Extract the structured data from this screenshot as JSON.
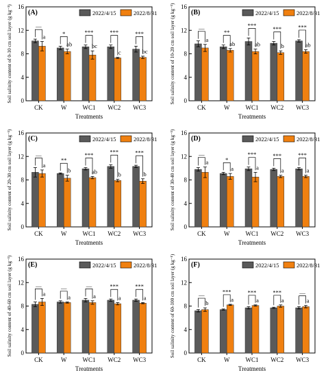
{
  "colors": {
    "dark": "#5a5a5a",
    "orange": "#f08010"
  },
  "legend_labels": [
    "2022/4/15",
    "2022/8/31"
  ],
  "xlabel": "Treatments",
  "chart_data": [
    {
      "panel": "(A)",
      "type": "bar",
      "categories": [
        "CK",
        "W",
        "WC1",
        "WC2",
        "WC3"
      ],
      "ylabel": "Soil salinity content of 0-10 cm soil layer (g kg⁻¹)",
      "ylim": [
        0,
        16
      ],
      "yticks": [
        0,
        4,
        8,
        12,
        16
      ],
      "series": [
        {
          "name": "2022/4/15",
          "values": [
            10.2,
            9.0,
            9.2,
            9.2,
            8.8
          ],
          "errors": [
            0.3,
            0.3,
            0.3,
            0.3,
            0.5
          ]
        },
        {
          "name": "2022/8/31",
          "values": [
            9.3,
            8.4,
            7.8,
            7.3,
            7.4
          ],
          "errors": [
            0.8,
            0.4,
            0.7,
            0.1,
            0.2
          ]
        }
      ],
      "letters": [
        "a",
        "ab",
        "bc",
        "c",
        "bc"
      ],
      "significance": [
        "—",
        "*",
        "***",
        "***",
        "***"
      ]
    },
    {
      "panel": "(B)",
      "type": "bar",
      "categories": [
        "CK",
        "W",
        "WC1",
        "WC2",
        "WC3"
      ],
      "ylabel": "Soil salinity content of 10-20 cm soil layer (g kg⁻¹)",
      "ylim": [
        0,
        16
      ],
      "yticks": [
        0,
        4,
        8,
        12,
        16
      ],
      "series": [
        {
          "name": "2022/4/15",
          "values": [
            9.7,
            9.2,
            10.1,
            9.8,
            10.2
          ],
          "errors": [
            0.5,
            0.3,
            0.6,
            0.3,
            0.2
          ]
        },
        {
          "name": "2022/8/31",
          "values": [
            9.0,
            8.6,
            8.4,
            8.2,
            8.4
          ],
          "errors": [
            0.6,
            0.3,
            0.4,
            0.3,
            0.3
          ]
        }
      ],
      "letters": [
        "a",
        "ab",
        "ab",
        "b",
        "ab"
      ],
      "significance": [
        "—",
        "**",
        "***",
        "***",
        "***"
      ]
    },
    {
      "panel": "(C)",
      "type": "bar",
      "categories": [
        "CK",
        "W",
        "WC1",
        "WC2",
        "WC3"
      ],
      "ylabel": "Soil salinity content of 20-30 cm soil layer (g kg⁻¹)",
      "ylim": [
        0,
        16
      ],
      "yticks": [
        0,
        4,
        8,
        12,
        16
      ],
      "series": [
        {
          "name": "2022/4/15",
          "values": [
            9.3,
            9.1,
            9.9,
            10.3,
            10.3
          ],
          "errors": [
            0.8,
            0.1,
            0.2,
            0.3,
            0.2
          ]
        },
        {
          "name": "2022/8/31",
          "values": [
            9.1,
            8.3,
            8.4,
            7.9,
            7.8
          ],
          "errors": [
            0.6,
            0.5,
            0.2,
            0.2,
            0.4
          ]
        }
      ],
      "letters": [
        "a",
        "b",
        "ab",
        "b",
        "b"
      ],
      "significance": [
        "—",
        "**",
        "***",
        "***",
        "***"
      ]
    },
    {
      "panel": "(D)",
      "type": "bar",
      "categories": [
        "CK",
        "W",
        "WC1",
        "WC2",
        "WC3"
      ],
      "ylabel": "Soil salinity content of 30-40 cm soil layer (g kg⁻¹)",
      "ylim": [
        0,
        16
      ],
      "yticks": [
        0,
        4,
        8,
        12,
        16
      ],
      "series": [
        {
          "name": "2022/4/15",
          "values": [
            9.8,
            9.1,
            9.9,
            9.8,
            9.9
          ],
          "errors": [
            0.3,
            0.2,
            0.3,
            0.2,
            0.2
          ]
        },
        {
          "name": "2022/8/31",
          "values": [
            9.3,
            8.6,
            8.5,
            8.6,
            8.6
          ],
          "errors": [
            0.9,
            0.5,
            0.8,
            0.2,
            0.2
          ]
        }
      ],
      "letters": [
        "a",
        "a",
        "a",
        "a",
        "a"
      ],
      "significance": [
        "—",
        "*",
        "***",
        "***",
        "***"
      ]
    },
    {
      "panel": "(E)",
      "type": "bar",
      "categories": [
        "CK",
        "W",
        "WC1",
        "WC2",
        "WC3"
      ],
      "ylabel": "Soil salinity content of 40-60 cm soil layer (g kg⁻¹)",
      "ylim": [
        0,
        16
      ],
      "yticks": [
        0,
        4,
        8,
        12,
        16
      ],
      "series": [
        {
          "name": "2022/4/15",
          "values": [
            8.3,
            8.7,
            9.0,
            9.0,
            9.0
          ],
          "errors": [
            0.4,
            0.2,
            0.3,
            0.2,
            0.2
          ]
        },
        {
          "name": "2022/8/31",
          "values": [
            8.7,
            8.6,
            8.6,
            8.4,
            8.5
          ],
          "errors": [
            0.6,
            0.1,
            0.3,
            0.2,
            0.1
          ]
        }
      ],
      "letters": [
        "a",
        "a",
        "a",
        "a",
        "a"
      ],
      "significance": [
        "—",
        "—",
        "—",
        "***",
        "***"
      ]
    },
    {
      "panel": "(F)",
      "type": "bar",
      "categories": [
        "CK",
        "W",
        "WC1",
        "WC2",
        "WC3"
      ],
      "ylabel": "Soil salinity content of 60-100 cm soil layer (g kg⁻¹)",
      "ylim": [
        0,
        16
      ],
      "yticks": [
        0,
        4,
        8,
        12,
        16
      ],
      "series": [
        {
          "name": "2022/4/15",
          "values": [
            7.2,
            7.4,
            7.7,
            7.7,
            7.7
          ],
          "errors": [
            0.2,
            0.1,
            0.2,
            0.1,
            0.2
          ]
        },
        {
          "name": "2022/8/31",
          "values": [
            7.4,
            8.2,
            8.1,
            8.0,
            7.9
          ],
          "errors": [
            0.3,
            0.1,
            0.1,
            0.2,
            0.2
          ]
        }
      ],
      "letters": [
        "b",
        "a",
        "a",
        "a",
        "a"
      ],
      "significance": [
        "—",
        "***",
        "***",
        "***",
        "—"
      ]
    }
  ]
}
